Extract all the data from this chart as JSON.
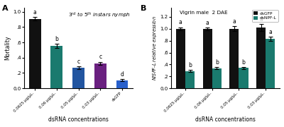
{
  "panel_a": {
    "title": "$3^{rd}$ to $5^{th}$ instars nymph",
    "ylabel": "Mortality",
    "xlabel": "dsRNA concentrations",
    "panel_label": "A",
    "categories": [
      "0.0625 μg/μL.",
      "0.06 μg/μL.",
      "0.05 μg/μL.",
      "0.03 μg/μL.",
      "dsGFP"
    ],
    "values": [
      0.905,
      0.555,
      0.27,
      0.325,
      0.105
    ],
    "errors": [
      0.022,
      0.025,
      0.018,
      0.022,
      0.013
    ],
    "colors": [
      "#111111",
      "#1a7a6e",
      "#2255a0",
      "#6a2080",
      "#2860cc"
    ],
    "sig_labels": [
      "a",
      "b",
      "c",
      "c",
      "d"
    ],
    "ylim": [
      0,
      1.05
    ],
    "yticks": [
      0.0,
      0.2,
      0.4,
      0.6,
      0.8,
      1.0
    ],
    "yticklabels": [
      "0.0",
      ".2",
      ".4",
      ".6",
      ".8",
      "1.0"
    ]
  },
  "panel_b": {
    "title_left": "Vigrin male",
    "title_right": "2 DAE",
    "ylabel": "$NlSPF$-$L$ relative expression",
    "xlabel": "dsRNA concentrations",
    "panel_label": "B",
    "categories": [
      "0.0625 μg/μL.",
      "0.06 μg/μL.",
      "0.05 μg/μL.",
      "0.03 μg/μL."
    ],
    "values_gfp": [
      1.0,
      1.0,
      1.0,
      1.02
    ],
    "values_spf": [
      0.29,
      0.335,
      0.34,
      0.83
    ],
    "errors_gfp": [
      0.025,
      0.022,
      0.038,
      0.055
    ],
    "errors_spf": [
      0.018,
      0.018,
      0.018,
      0.038
    ],
    "color_gfp": "#111111",
    "color_spf": "#1a7a6e",
    "sig_gfp": [
      "a",
      "a",
      "a",
      "a"
    ],
    "sig_spf": [
      "b",
      "b",
      "b",
      "a"
    ],
    "ylim": [
      0,
      1.35
    ],
    "yticks": [
      0.0,
      0.2,
      0.4,
      0.6,
      0.8,
      1.0,
      1.2
    ],
    "yticklabels": [
      "0.0",
      ".2",
      ".4",
      ".6",
      ".8",
      "1.0",
      "1.2"
    ],
    "legend_labels": [
      "dsGFP",
      "dsNPF-L"
    ]
  },
  "fig_bg": "#ffffff"
}
